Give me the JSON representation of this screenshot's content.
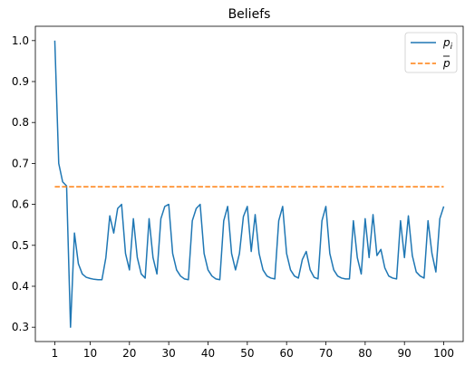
{
  "chart_data": {
    "type": "line",
    "title": "Beliefs",
    "xlabel": "",
    "ylabel": "",
    "xlim": [
      -3.95,
      104.95
    ],
    "ylim": [
      0.265,
      1.035
    ],
    "xticks": [
      1,
      10,
      20,
      30,
      40,
      50,
      60,
      70,
      80,
      90,
      100
    ],
    "yticks": [
      0.3,
      0.4,
      0.5,
      0.6,
      0.7,
      0.8,
      0.9,
      1.0
    ],
    "ytick_labels": [
      "0.3",
      "0.4",
      "0.5",
      "0.6",
      "0.7",
      "0.8",
      "0.9",
      "1.0"
    ],
    "grid": false,
    "legend_position": "top-right",
    "series": [
      {
        "name": "p_i",
        "color": "#1f77b4",
        "style": "solid",
        "x": [
          1,
          2,
          3,
          4,
          5,
          6,
          7,
          8,
          9,
          10,
          11,
          12,
          13,
          14,
          15,
          16,
          17,
          18,
          19,
          20,
          21,
          22,
          23,
          24,
          25,
          26,
          27,
          28,
          29,
          30,
          31,
          32,
          33,
          34,
          35,
          36,
          37,
          38,
          39,
          40,
          41,
          42,
          43,
          44,
          45,
          46,
          47,
          48,
          49,
          50,
          51,
          52,
          53,
          54,
          55,
          56,
          57,
          58,
          59,
          60,
          61,
          62,
          63,
          64,
          65,
          66,
          67,
          68,
          69,
          70,
          71,
          72,
          73,
          74,
          75,
          76,
          77,
          78,
          79,
          80,
          81,
          82,
          83,
          84,
          85,
          86,
          87,
          88,
          89,
          90,
          91,
          92,
          93,
          94,
          95,
          96,
          97,
          98,
          99,
          100
        ],
        "y": [
          1.0,
          0.7,
          0.655,
          0.645,
          0.3,
          0.53,
          0.455,
          0.43,
          0.422,
          0.419,
          0.417,
          0.416,
          0.416,
          0.47,
          0.572,
          0.53,
          0.59,
          0.6,
          0.48,
          0.44,
          0.565,
          0.47,
          0.43,
          0.42,
          0.565,
          0.47,
          0.43,
          0.565,
          0.595,
          0.6,
          0.48,
          0.44,
          0.425,
          0.418,
          0.416,
          0.56,
          0.59,
          0.6,
          0.48,
          0.44,
          0.425,
          0.418,
          0.416,
          0.56,
          0.595,
          0.48,
          0.44,
          0.48,
          0.57,
          0.595,
          0.485,
          0.575,
          0.48,
          0.44,
          0.425,
          0.42,
          0.418,
          0.56,
          0.595,
          0.48,
          0.44,
          0.425,
          0.42,
          0.465,
          0.485,
          0.44,
          0.422,
          0.418,
          0.56,
          0.595,
          0.48,
          0.44,
          0.425,
          0.42,
          0.418,
          0.418,
          0.56,
          0.47,
          0.43,
          0.565,
          0.47,
          0.575,
          0.475,
          0.49,
          0.445,
          0.425,
          0.42,
          0.418,
          0.56,
          0.47,
          0.572,
          0.475,
          0.435,
          0.425,
          0.42,
          0.56,
          0.48,
          0.435,
          0.565,
          0.595
        ]
      },
      {
        "name": "p̄",
        "color": "#ff7f0e",
        "style": "dashed",
        "x": [
          1,
          100
        ],
        "y": [
          0.643,
          0.643
        ]
      }
    ]
  }
}
